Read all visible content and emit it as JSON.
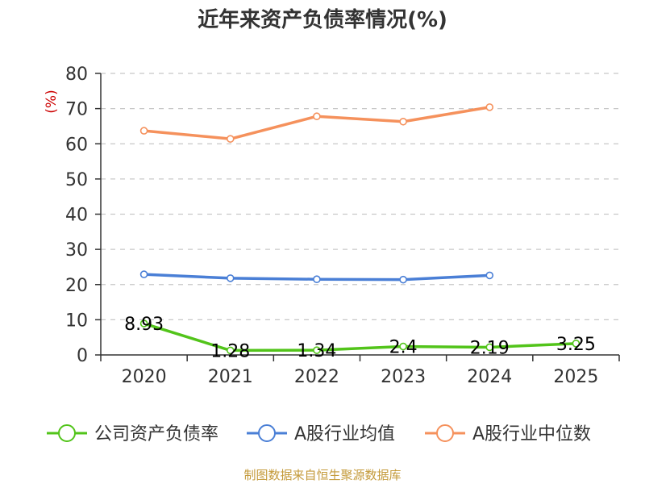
{
  "chart_data": {
    "type": "line",
    "title": "近年来资产负债率情况(%)",
    "ylabel": "(%)",
    "xlabel": "",
    "categories": [
      "2020",
      "2021",
      "2022",
      "2023",
      "2024",
      "2025"
    ],
    "ylim": [
      0,
      80
    ],
    "yticks": [
      0,
      10,
      20,
      30,
      40,
      50,
      60,
      70,
      80
    ],
    "grid": true,
    "legend": "bottom",
    "series": [
      {
        "name": "公司资产负债率",
        "color": "#52c41a",
        "values": [
          8.93,
          1.28,
          1.34,
          2.4,
          2.19,
          3.25
        ],
        "data_labels": [
          "8.93",
          "1.28",
          "1.34",
          "2.4",
          "2.19",
          "3.25"
        ]
      },
      {
        "name": "A股行业均值",
        "color": "#4a7fd6",
        "values": [
          22.9,
          21.8,
          21.5,
          21.4,
          22.6,
          null
        ]
      },
      {
        "name": "A股行业中位数",
        "color": "#f5915c",
        "values": [
          63.7,
          61.4,
          67.8,
          66.3,
          70.4,
          null
        ]
      }
    ],
    "source": "制图数据来自恒生聚源数据库"
  }
}
